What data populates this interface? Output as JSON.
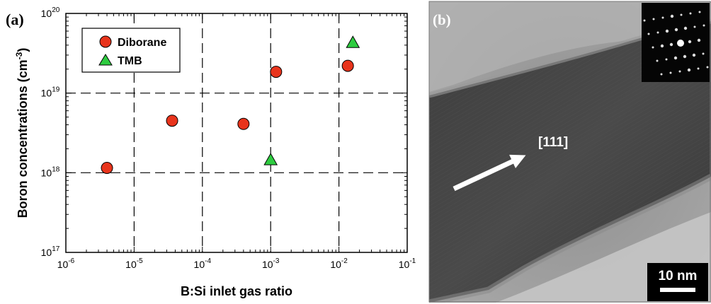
{
  "panel_a": {
    "label": "(a)"
  },
  "panel_b": {
    "label": "(b)",
    "direction_label": "[111]",
    "scale_bar_label": "10 nm"
  },
  "chart_data": {
    "type": "scatter",
    "xlabel": "B:Si inlet gas ratio",
    "ylabel": "Boron concentrations (cm",
    "ylabel_unit_exponent": "-3",
    "ylabel_suffix": ")",
    "xscale": "log",
    "yscale": "log",
    "xlim": [
      1e-06,
      0.1
    ],
    "ylim": [
      1e+17,
      1e+20
    ],
    "xticks": [
      {
        "value": 1e-06,
        "base": "10",
        "exp": "-6"
      },
      {
        "value": 1e-05,
        "base": "10",
        "exp": "-5"
      },
      {
        "value": 0.0001,
        "base": "10",
        "exp": "-4"
      },
      {
        "value": 0.001,
        "base": "10",
        "exp": "-3"
      },
      {
        "value": 0.01,
        "base": "10",
        "exp": "-2"
      },
      {
        "value": 0.1,
        "base": "10",
        "exp": "-1"
      }
    ],
    "yticks": [
      {
        "value": 1e+17,
        "base": "10",
        "exp": "17"
      },
      {
        "value": 1e+18,
        "base": "10",
        "exp": "18"
      },
      {
        "value": 1e+19,
        "base": "10",
        "exp": "19"
      },
      {
        "value": 1e+20,
        "base": "10",
        "exp": "20"
      }
    ],
    "grid": "dashed at major decades",
    "legend_position": "top-left",
    "series": [
      {
        "name": "Diborane",
        "marker": "circle",
        "color": "#e8341c",
        "points": [
          {
            "x": 4e-06,
            "y": 1.15e+18
          },
          {
            "x": 3.6e-05,
            "y": 4.5e+18
          },
          {
            "x": 0.0004,
            "y": 4.1e+18
          },
          {
            "x": 0.0012,
            "y": 1.85e+19
          },
          {
            "x": 0.0135,
            "y": 2.2e+19
          }
        ]
      },
      {
        "name": "TMB",
        "marker": "triangle",
        "color": "#2ecc40",
        "points": [
          {
            "x": 0.001,
            "y": 1.45e+18
          },
          {
            "x": 0.016,
            "y": 4.3e+19
          }
        ]
      }
    ]
  }
}
